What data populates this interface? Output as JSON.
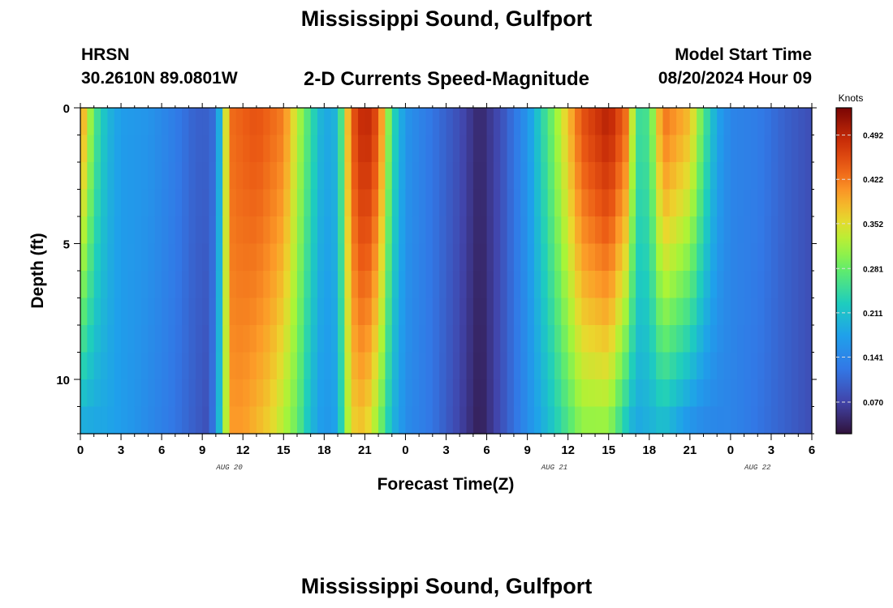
{
  "header": {
    "title": "Mississippi Sound, Gulfport",
    "station": "HRSN",
    "coords": "30.2610N  89.0801W",
    "subtitle": "2-D Currents Speed-Magnitude",
    "start_label": "Model Start Time",
    "start_value": "08/20/2024 Hour 09"
  },
  "footer": {
    "title": "Mississippi Sound, Gulfport"
  },
  "chart_data": {
    "type": "heatmap",
    "title": "2-D Currents Speed-Magnitude",
    "xlabel": "Forecast Time(Z)",
    "ylabel": "Depth (ft)",
    "x_tick_labels": [
      "0",
      "3",
      "6",
      "9",
      "12",
      "15",
      "18",
      "21",
      "0",
      "3",
      "6",
      "9",
      "12",
      "15",
      "18",
      "21",
      "0",
      "3",
      "6"
    ],
    "date_labels": [
      {
        "text": "AUG 20",
        "hour": 11
      },
      {
        "text": "AUG 21",
        "hour": 35
      },
      {
        "text": "AUG 22",
        "hour": 50
      }
    ],
    "xlim_hours": [
      0,
      54
    ],
    "y_tick_labels": [
      "0",
      "5",
      "10"
    ],
    "ylim_ft": [
      0,
      12
    ],
    "colorbar": {
      "unit": "Knots",
      "tick_labels": [
        "0.492",
        "0.422",
        "0.352",
        "0.281",
        "0.211",
        "0.141",
        "0.070"
      ],
      "tick_values": [
        0.492,
        0.422,
        0.352,
        0.281,
        0.211,
        0.141,
        0.07
      ],
      "range": [
        0.02,
        0.535
      ],
      "colormap": "turbo"
    },
    "surface_speed_knots": [
      {
        "hour": 0,
        "speed": 0.41
      },
      {
        "hour": 0.5,
        "speed": 0.35
      },
      {
        "hour": 1,
        "speed": 0.27
      },
      {
        "hour": 2,
        "speed": 0.2
      },
      {
        "hour": 3,
        "speed": 0.17
      },
      {
        "hour": 5,
        "speed": 0.16
      },
      {
        "hour": 7,
        "speed": 0.13
      },
      {
        "hour": 8.5,
        "speed": 0.1
      },
      {
        "hour": 9.5,
        "speed": 0.1
      },
      {
        "hour": 10,
        "speed": 0.12
      },
      {
        "hour": 10.3,
        "speed": 0.2
      },
      {
        "hour": 10.6,
        "speed": 0.3
      },
      {
        "hour": 11,
        "speed": 0.43
      },
      {
        "hour": 13,
        "speed": 0.45
      },
      {
        "hour": 15,
        "speed": 0.42
      },
      {
        "hour": 16,
        "speed": 0.33
      },
      {
        "hour": 17,
        "speed": 0.25
      },
      {
        "hour": 18,
        "speed": 0.18
      },
      {
        "hour": 19,
        "speed": 0.2
      },
      {
        "hour": 19.5,
        "speed": 0.32
      },
      {
        "hour": 20,
        "speed": 0.44
      },
      {
        "hour": 21,
        "speed": 0.5
      },
      {
        "hour": 22,
        "speed": 0.45
      },
      {
        "hour": 23,
        "speed": 0.25
      },
      {
        "hour": 24,
        "speed": 0.16
      },
      {
        "hour": 26,
        "speed": 0.12
      },
      {
        "hour": 28,
        "speed": 0.08
      },
      {
        "hour": 29.5,
        "speed": 0.04
      },
      {
        "hour": 31,
        "speed": 0.08
      },
      {
        "hour": 33,
        "speed": 0.16
      },
      {
        "hour": 35,
        "speed": 0.3
      },
      {
        "hour": 37,
        "speed": 0.45
      },
      {
        "hour": 39,
        "speed": 0.5
      },
      {
        "hour": 40.5,
        "speed": 0.42
      },
      {
        "hour": 41,
        "speed": 0.25
      },
      {
        "hour": 42,
        "speed": 0.26
      },
      {
        "hour": 43,
        "speed": 0.43
      },
      {
        "hour": 45,
        "speed": 0.38
      },
      {
        "hour": 46,
        "speed": 0.27
      },
      {
        "hour": 47,
        "speed": 0.18
      },
      {
        "hour": 48,
        "speed": 0.14
      },
      {
        "hour": 50,
        "speed": 0.13
      },
      {
        "hour": 52,
        "speed": 0.1
      },
      {
        "hour": 54,
        "speed": 0.08
      }
    ],
    "bottom_speed_knots": [
      {
        "hour": 0,
        "speed": 0.18
      },
      {
        "hour": 2,
        "speed": 0.18
      },
      {
        "hour": 4,
        "speed": 0.16
      },
      {
        "hour": 7,
        "speed": 0.12
      },
      {
        "hour": 9.5,
        "speed": 0.08
      },
      {
        "hour": 10,
        "speed": 0.15
      },
      {
        "hour": 10.6,
        "speed": 0.28
      },
      {
        "hour": 11,
        "speed": 0.4
      },
      {
        "hour": 12,
        "speed": 0.4
      },
      {
        "hour": 14,
        "speed": 0.36
      },
      {
        "hour": 16,
        "speed": 0.28
      },
      {
        "hour": 17,
        "speed": 0.2
      },
      {
        "hour": 18,
        "speed": 0.16
      },
      {
        "hour": 19,
        "speed": 0.18
      },
      {
        "hour": 19.5,
        "speed": 0.28
      },
      {
        "hour": 20,
        "speed": 0.36
      },
      {
        "hour": 21,
        "speed": 0.37
      },
      {
        "hour": 22,
        "speed": 0.3
      },
      {
        "hour": 23,
        "speed": 0.2
      },
      {
        "hour": 24,
        "speed": 0.15
      },
      {
        "hour": 26,
        "speed": 0.12
      },
      {
        "hour": 28,
        "speed": 0.07
      },
      {
        "hour": 29.5,
        "speed": 0.03
      },
      {
        "hour": 31,
        "speed": 0.08
      },
      {
        "hour": 33,
        "speed": 0.15
      },
      {
        "hour": 35,
        "speed": 0.22
      },
      {
        "hour": 37,
        "speed": 0.3
      },
      {
        "hour": 39,
        "speed": 0.3
      },
      {
        "hour": 40.5,
        "speed": 0.2
      },
      {
        "hour": 41,
        "speed": 0.18
      },
      {
        "hour": 43,
        "speed": 0.2
      },
      {
        "hour": 45,
        "speed": 0.15
      },
      {
        "hour": 46,
        "speed": 0.14
      },
      {
        "hour": 48,
        "speed": 0.14
      },
      {
        "hour": 50,
        "speed": 0.12
      },
      {
        "hour": 52,
        "speed": 0.1
      },
      {
        "hour": 54,
        "speed": 0.08
      }
    ]
  }
}
